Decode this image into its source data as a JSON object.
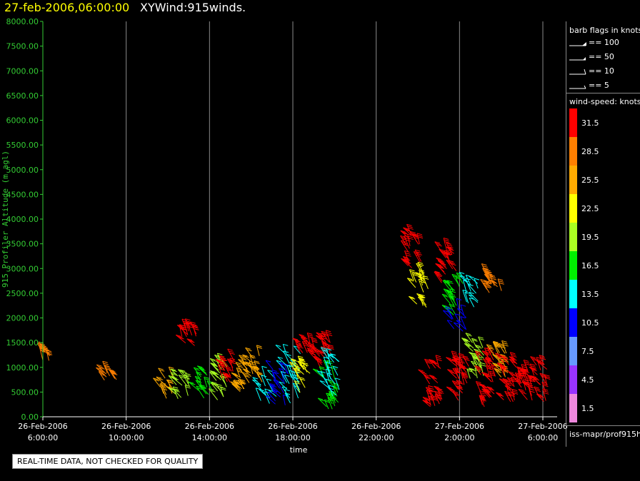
{
  "header": {
    "time": "27-feb-2006,06:00:00",
    "title": "XYWind:915winds."
  },
  "notice": "REAL-TIME DATA, NOT CHECKED FOR QUALITY",
  "colors": {
    "axis": "#33cc33",
    "grid": "#8a8a8a",
    "text": "#ffffff",
    "title_time": "#ffff00"
  },
  "legend": {
    "barb_title": "barb flags in knots",
    "barb_items": [
      "== 100",
      "== 50",
      "== 10",
      "== 5"
    ],
    "speed_title": "wind-speed: knots",
    "speed_scale": [
      {
        "label": "31.5",
        "color": "#ff0000"
      },
      {
        "label": "28.5",
        "color": "#ff7f00"
      },
      {
        "label": "25.5",
        "color": "#ffaa00"
      },
      {
        "label": "22.5",
        "color": "#ffff00"
      },
      {
        "label": "19.5",
        "color": "#aaff22"
      },
      {
        "label": "16.5",
        "color": "#00ee00"
      },
      {
        "label": "13.5",
        "color": "#00ffff"
      },
      {
        "label": "10.5",
        "color": "#0000ff"
      },
      {
        "label": "7.5",
        "color": "#6699ff"
      },
      {
        "label": "4.5",
        "color": "#9933ff"
      },
      {
        "label": "1.5",
        "color": "#ee88dd"
      }
    ],
    "footer": "iss-mapr/prof915h"
  },
  "chart_data": {
    "type": "scatter",
    "xlabel": "time",
    "ylabel": "915 Profiler Altitude (m agl)",
    "ylim": [
      0,
      8000
    ],
    "xlim": [
      "2006-02-26 06:00",
      "2006-02-27 06:00"
    ],
    "yticks": [
      "0.00",
      "500.00",
      "1000.00",
      "1500.00",
      "2000.00",
      "2500.00",
      "3000.00",
      "3500.00",
      "4000.00",
      "4500.00",
      "5000.00",
      "5500.00",
      "6000.00",
      "6500.00",
      "7000.00",
      "7500.00",
      "8000.00"
    ],
    "xticks": [
      {
        "time": "2006-02-26 06:00",
        "line1": "26-Feb-2006",
        "line2": "6:00:00"
      },
      {
        "time": "2006-02-26 10:00",
        "line1": "26-Feb-2006",
        "line2": "10:00:00"
      },
      {
        "time": "2006-02-26 14:00",
        "line1": "26-Feb-2006",
        "line2": "14:00:00"
      },
      {
        "time": "2006-02-26 18:00",
        "line1": "26-Feb-2006",
        "line2": "18:00:00"
      },
      {
        "time": "2006-02-26 22:00",
        "line1": "26-Feb-2006",
        "line2": "22:00:00"
      },
      {
        "time": "2006-02-27 02:00",
        "line1": "27-Feb-2006",
        "line2": "2:00:00"
      },
      {
        "time": "2006-02-27 06:00",
        "line1": "27-Feb-2006",
        "line2": "6:00:00"
      }
    ],
    "grid": true,
    "clusters": [
      {
        "time": "2006-02-26 06:20",
        "alt": [
          1100,
          1400
        ],
        "speed": 29
      },
      {
        "time": "2006-02-26 09:10",
        "alt": [
          700,
          1000
        ],
        "speed": 29
      },
      {
        "time": "2006-02-26 12:00",
        "alt": [
          350,
          800
        ],
        "speed": 24
      },
      {
        "time": "2006-02-26 12:45",
        "alt": [
          350,
          950
        ],
        "speed": 20
      },
      {
        "time": "2006-02-26 13:00",
        "alt": [
          1400,
          1900
        ],
        "speed": 30
      },
      {
        "time": "2006-02-26 13:50",
        "alt": [
          350,
          900
        ],
        "speed": 17
      },
      {
        "time": "2006-02-26 14:30",
        "alt": [
          300,
          1100
        ],
        "speed": 20
      },
      {
        "time": "2006-02-26 15:00",
        "alt": [
          700,
          1200
        ],
        "speed": 32
      },
      {
        "time": "2006-02-26 15:40",
        "alt": [
          500,
          1100
        ],
        "speed": 26
      },
      {
        "time": "2006-02-26 16:10",
        "alt": [
          700,
          1250
        ],
        "speed": 24
      },
      {
        "time": "2006-02-26 16:50",
        "alt": [
          250,
          800
        ],
        "speed": 14
      },
      {
        "time": "2006-02-26 17:25",
        "alt": [
          200,
          1000
        ],
        "speed": 10
      },
      {
        "time": "2006-02-26 18:00",
        "alt": [
          250,
          1300
        ],
        "speed": 14
      },
      {
        "time": "2006-02-26 18:30",
        "alt": [
          400,
          1050
        ],
        "speed": 23
      },
      {
        "time": "2006-02-26 18:40",
        "alt": [
          1200,
          1600
        ],
        "speed": 30
      },
      {
        "time": "2006-02-26 19:30",
        "alt": [
          900,
          1600
        ],
        "speed": 32
      },
      {
        "time": "2006-02-26 19:50",
        "alt": [
          150,
          900
        ],
        "speed": 16
      },
      {
        "time": "2006-02-26 20:00",
        "alt": [
          300,
          1200
        ],
        "speed": 12
      },
      {
        "time": "2006-02-26 23:50",
        "alt": [
          3000,
          3700
        ],
        "speed": 30
      },
      {
        "time": "2006-02-27 00:10",
        "alt": [
          2200,
          2900
        ],
        "speed": 23
      },
      {
        "time": "2006-02-27 00:50",
        "alt": [
          200,
          1000
        ],
        "speed": 33
      },
      {
        "time": "2006-02-27 01:30",
        "alt": [
          2700,
          3400
        ],
        "speed": 30
      },
      {
        "time": "2006-02-27 01:50",
        "alt": [
          2000,
          2700
        ],
        "speed": 17
      },
      {
        "time": "2006-02-27 02:00",
        "alt": [
          1700,
          2200
        ],
        "speed": 10
      },
      {
        "time": "2006-02-27 02:10",
        "alt": [
          200,
          1100
        ],
        "speed": 33
      },
      {
        "time": "2006-02-27 02:40",
        "alt": [
          2200,
          2800
        ],
        "speed": 14
      },
      {
        "time": "2006-02-27 02:50",
        "alt": [
          700,
          1500
        ],
        "speed": 20
      },
      {
        "time": "2006-02-27 03:20",
        "alt": [
          200,
          1200
        ],
        "speed": 33
      },
      {
        "time": "2006-02-27 03:40",
        "alt": [
          2500,
          3000
        ],
        "speed": 29
      },
      {
        "time": "2006-02-27 04:00",
        "alt": [
          800,
          1400
        ],
        "speed": 26
      },
      {
        "time": "2006-02-27 04:30",
        "alt": [
          300,
          1100
        ],
        "speed": 33
      },
      {
        "time": "2006-02-27 05:10",
        "alt": [
          300,
          1000
        ],
        "speed": 33
      },
      {
        "time": "2006-02-27 05:50",
        "alt": [
          300,
          1100
        ],
        "speed": 32
      }
    ]
  }
}
